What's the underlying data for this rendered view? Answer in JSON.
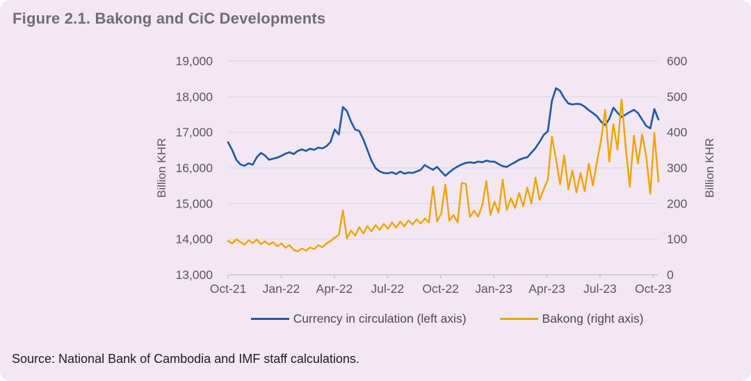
{
  "title": "Figure 2.1. Bakong and CiC Developments",
  "source": "Source: National Bank of Cambodia and IMF staff calculations.",
  "colors": {
    "background": "#f2e7f2",
    "title_text": "#6d6e71",
    "axis_text": "#58585a",
    "legend_text": "#4b4b4d",
    "source_text": "#1c1c1c",
    "grid_line": "#ded7df",
    "axis_line": "#c8c0c9",
    "cic_blue": "#1f5aa8",
    "bakong_yellow": "#f0a400"
  },
  "chart_data": {
    "type": "line",
    "title": "Figure 2.1. Bakong and CiC Developments",
    "x_unit": "weekly observations, Oct-2021 to Oct-2023",
    "months_span": 24.3,
    "x_ticks": [
      {
        "label": "Oct-21",
        "month": 0
      },
      {
        "label": "Jan-22",
        "month": 3
      },
      {
        "label": "Apr-22",
        "month": 6
      },
      {
        "label": "Jul-22",
        "month": 9
      },
      {
        "label": "Oct-22",
        "month": 12
      },
      {
        "label": "Jan-23",
        "month": 15
      },
      {
        "label": "Apr-23",
        "month": 18
      },
      {
        "label": "Jul-23",
        "month": 21
      },
      {
        "label": "Oct-23",
        "month": 24
      }
    ],
    "left_axis": {
      "label": "Billion KHR",
      "min": 13000,
      "max": 19000,
      "tick_step": 1000,
      "tick_labels": [
        "13,000",
        "14,000",
        "15,000",
        "16,000",
        "17,000",
        "18,000",
        "19,000"
      ]
    },
    "right_axis": {
      "label": "Billion KHR",
      "min": 0,
      "max": 600,
      "tick_step": 100,
      "tick_labels": [
        "0",
        "100",
        "200",
        "300",
        "400",
        "500",
        "600"
      ]
    },
    "grid": true,
    "legend_position": "bottom",
    "series": [
      {
        "name": "Currency in circulation (left axis)",
        "axis": "left",
        "color": "#1f5aa8",
        "values": [
          16720,
          16500,
          16230,
          16100,
          16060,
          16130,
          16090,
          16300,
          16420,
          16350,
          16230,
          16260,
          16290,
          16340,
          16400,
          16440,
          16390,
          16480,
          16520,
          16480,
          16540,
          16510,
          16570,
          16550,
          16610,
          16730,
          17080,
          16940,
          17710,
          17600,
          17300,
          17080,
          17040,
          16800,
          16500,
          16200,
          15990,
          15900,
          15860,
          15850,
          15880,
          15830,
          15900,
          15840,
          15870,
          15860,
          15900,
          15950,
          16080,
          16010,
          15950,
          16030,
          15900,
          15780,
          15880,
          15970,
          16040,
          16100,
          16140,
          16160,
          16140,
          16180,
          16160,
          16205,
          16180,
          16175,
          16110,
          16050,
          16030,
          16100,
          16160,
          16230,
          16270,
          16300,
          16430,
          16560,
          16730,
          16930,
          17030,
          17880,
          18240,
          18160,
          17960,
          17810,
          17780,
          17800,
          17790,
          17720,
          17620,
          17540,
          17450,
          17300,
          17200,
          17380,
          17690,
          17550,
          17430,
          17500,
          17570,
          17630,
          17540,
          17360,
          17180,
          17110,
          17650,
          17360
        ]
      },
      {
        "name": "Bakong (right axis)",
        "axis": "right",
        "color": "#f0a400",
        "values": [
          95,
          88,
          100,
          92,
          85,
          97,
          89,
          99,
          86,
          94,
          85,
          92,
          80,
          88,
          76,
          83,
          70,
          66,
          74,
          68,
          77,
          72,
          83,
          78,
          88,
          95,
          104,
          112,
          181,
          102,
          124,
          110,
          134,
          116,
          137,
          122,
          140,
          126,
          143,
          129,
          147,
          132,
          150,
          136,
          153,
          141,
          156,
          144,
          158,
          147,
          247,
          150,
          172,
          253,
          152,
          168,
          147,
          258,
          255,
          162,
          180,
          163,
          195,
          263,
          168,
          205,
          175,
          267,
          182,
          215,
          188,
          230,
          192,
          245,
          200,
          273,
          210,
          240,
          267,
          388,
          325,
          254,
          335,
          240,
          293,
          231,
          286,
          234,
          312,
          251,
          318,
          378,
          463,
          318,
          423,
          352,
          492,
          358,
          247,
          391,
          312,
          394,
          332,
          227,
          398,
          262
        ]
      }
    ]
  }
}
